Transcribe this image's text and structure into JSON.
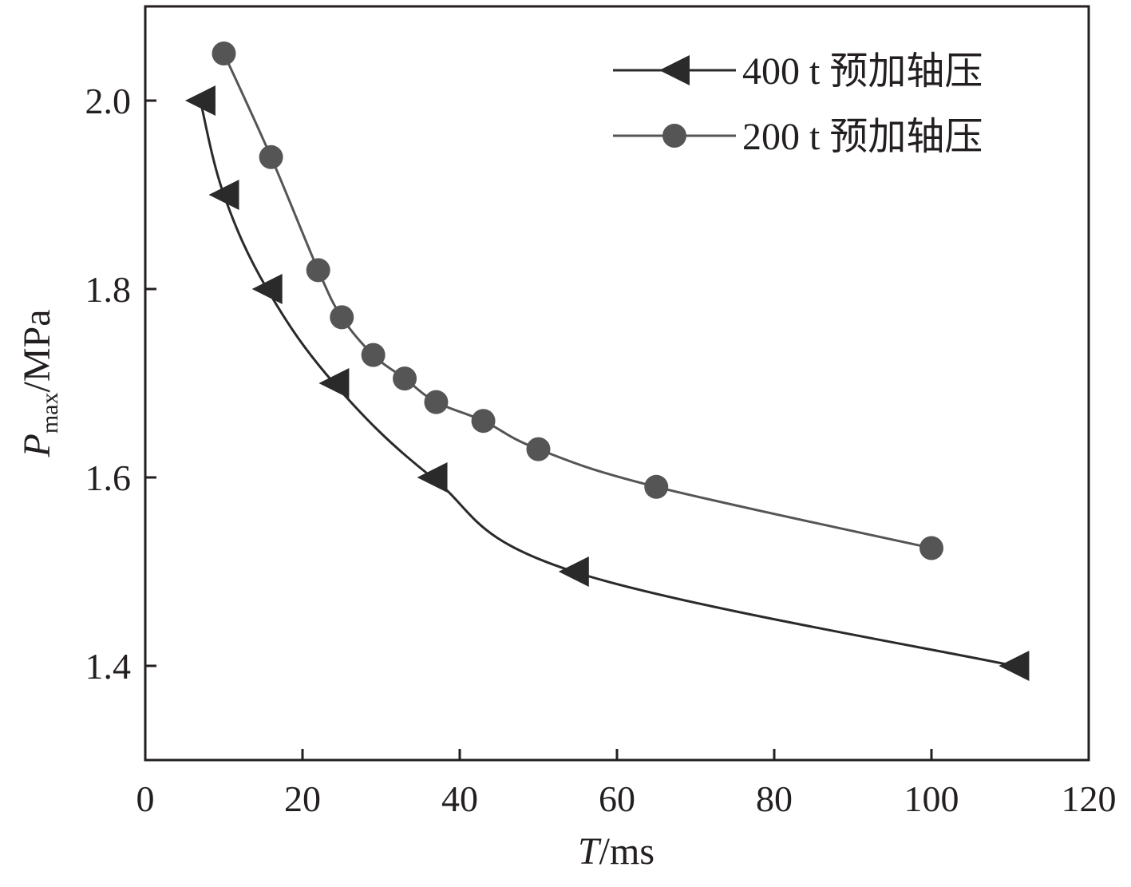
{
  "chart_data": {
    "type": "line",
    "title": "",
    "xlabel": {
      "var": "T",
      "unit": "/ms"
    },
    "ylabel": {
      "var": "P",
      "sub": "max",
      "unit": "/MPa"
    },
    "xlim": [
      0,
      120
    ],
    "ylim": [
      1.3,
      2.1
    ],
    "x_ticks": [
      0,
      20,
      40,
      60,
      80,
      100,
      120
    ],
    "x_tick_labels": [
      "0",
      "20",
      "40",
      "60",
      "80",
      "100",
      "120"
    ],
    "y_ticks": [
      1.4,
      1.6,
      1.8,
      2.0
    ],
    "y_tick_labels": [
      "1.4",
      "1.6",
      "1.8",
      "2.0"
    ],
    "grid": false,
    "legend_position": "top-right",
    "series": [
      {
        "name": "400 t 预加轴压",
        "marker": "triangle-left",
        "color": "#2a2a2a",
        "x": [
          7,
          10,
          15.5,
          24,
          36.5,
          54.5,
          110.5
        ],
        "y": [
          2.0,
          1.9,
          1.8,
          1.7,
          1.6,
          1.5,
          1.4
        ]
      },
      {
        "name": "200 t 预加轴压",
        "marker": "circle",
        "color": "#555555",
        "x": [
          10,
          16,
          22,
          25,
          29,
          33,
          37,
          43,
          50,
          65,
          100
        ],
        "y": [
          2.05,
          1.94,
          1.82,
          1.77,
          1.73,
          1.705,
          1.68,
          1.66,
          1.63,
          1.59,
          1.525
        ]
      }
    ]
  }
}
